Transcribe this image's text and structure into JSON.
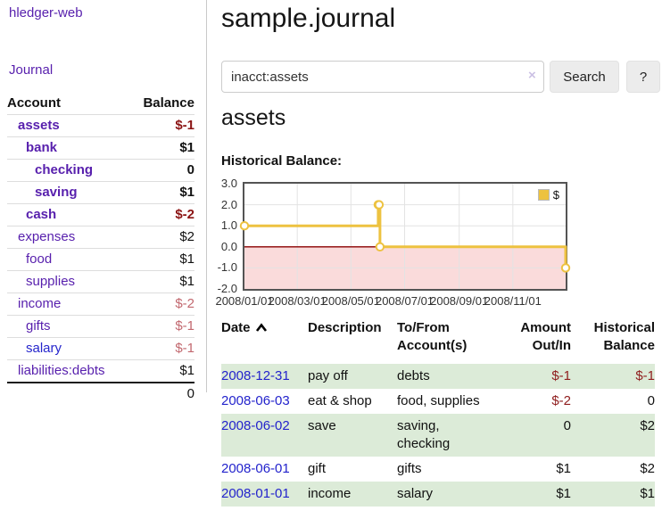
{
  "colors": {
    "link_purple": "#571fad",
    "link_blue": "#2626cc",
    "negative_bold": "#8b1414",
    "negative_light": "#c2686f",
    "row_green": "#dcebd8",
    "chart_line": "#edc240",
    "chart_negative_fill": "#fadbdb",
    "chart_zero_line": "#8b0000"
  },
  "sidebar": {
    "brand": "hledger-web",
    "journal_link": "Journal",
    "accounts": {
      "col_account": "Account",
      "col_balance": "Balance",
      "rows": [
        {
          "name": "assets",
          "balance": "$-1"
        },
        {
          "name": "bank",
          "balance": "$1"
        },
        {
          "name": "checking",
          "balance": "0"
        },
        {
          "name": "saving",
          "balance": "$1"
        },
        {
          "name": "cash",
          "balance": "$-2"
        },
        {
          "name": "expenses",
          "balance": "$2"
        },
        {
          "name": "food",
          "balance": "$1"
        },
        {
          "name": "supplies",
          "balance": "$1"
        },
        {
          "name": "income",
          "balance": "$-2"
        },
        {
          "name": "gifts",
          "balance": "$-1"
        },
        {
          "name": "salary",
          "balance": "$-1"
        },
        {
          "name": "liabilities:debts",
          "balance": "$1"
        }
      ],
      "total": "0"
    }
  },
  "main": {
    "title": "sample.journal",
    "search": {
      "value": "inacct:assets",
      "clear_icon": "×",
      "search_button": "Search",
      "help_button": "?"
    },
    "account_heading": "assets",
    "chart_title": "Historical Balance:"
  },
  "chart_data": {
    "type": "line",
    "step": true,
    "title": "Historical Balance",
    "series": [
      {
        "name": "$",
        "color": "#edc240",
        "points": [
          [
            "2008-01-01",
            1
          ],
          [
            "2008-06-01",
            2
          ],
          [
            "2008-06-02",
            2
          ],
          [
            "2008-06-03",
            0
          ],
          [
            "2008-12-31",
            -1
          ]
        ]
      }
    ],
    "x_range": [
      "2008-01-01",
      "2008-12-31"
    ],
    "x_tick_labels": [
      "2008/01/01",
      "2008/03/01",
      "2008/05/01",
      "2008/07/01",
      "2008/09/01",
      "2008/11/01"
    ],
    "y_tick_labels": [
      "3.0",
      "2.0",
      "1.0",
      "0.0",
      "-1.0",
      "-2.0"
    ],
    "ylim": [
      -2,
      3
    ],
    "grid": true,
    "legend_position": "top-right",
    "zero_line_color": "#8b0000",
    "negative_region_fill": "#fadbdb"
  },
  "register": {
    "headers": {
      "date": "Date",
      "description": "Description",
      "tofrom": "To/From Account(s)",
      "amount": "Amount Out/In",
      "balance": "Historical Balance"
    },
    "rows": [
      {
        "date": "2008-12-31",
        "description": "pay off",
        "accounts": "debts",
        "amount": "$-1",
        "balance": "$-1"
      },
      {
        "date": "2008-06-03",
        "description": "eat & shop",
        "accounts": "food, supplies",
        "amount": "$-2",
        "balance": "0"
      },
      {
        "date": "2008-06-02",
        "description": "save",
        "accounts": "saving, checking",
        "amount": "0",
        "balance": "$2"
      },
      {
        "date": "2008-06-01",
        "description": "gift",
        "accounts": "gifts",
        "amount": "$1",
        "balance": "$2"
      },
      {
        "date": "2008-01-01",
        "description": "income",
        "accounts": "salary",
        "amount": "$1",
        "balance": "$1"
      }
    ]
  }
}
